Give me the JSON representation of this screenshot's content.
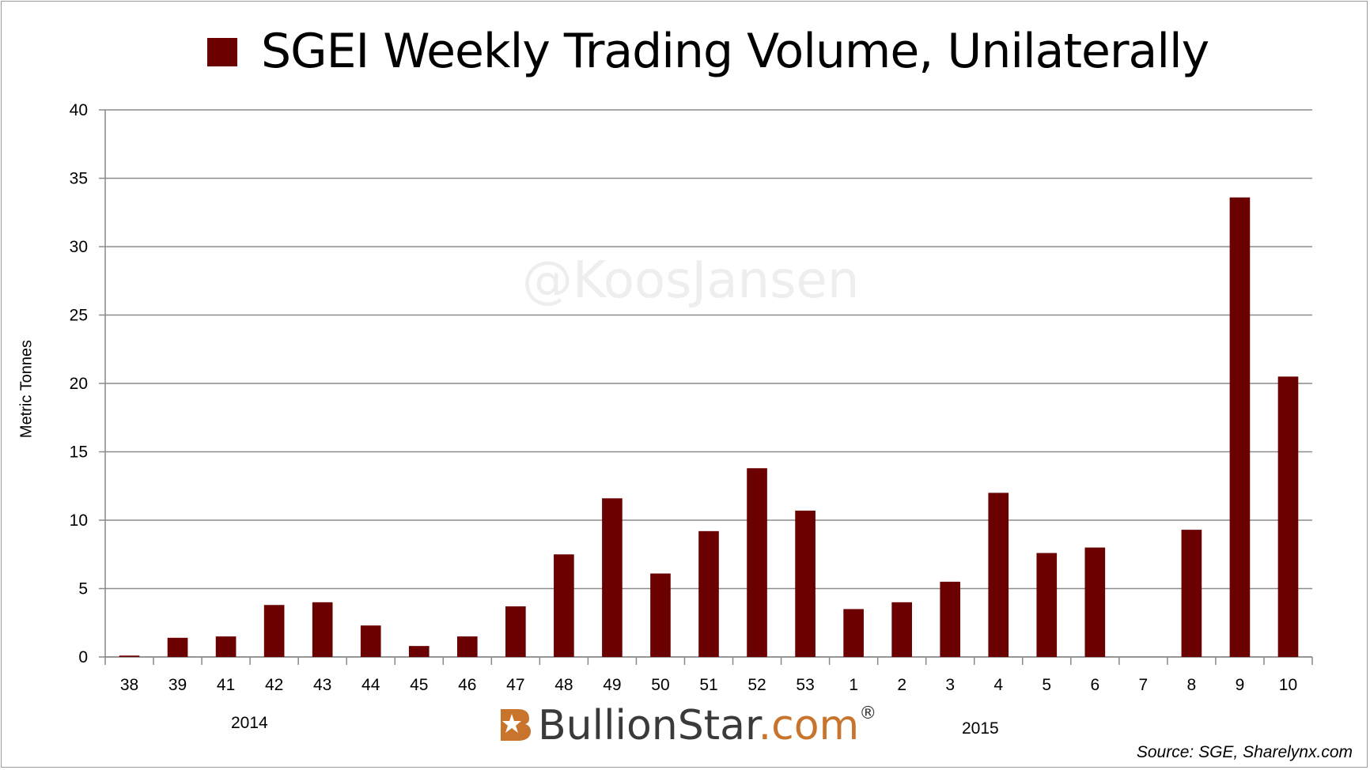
{
  "chart_data": {
    "type": "bar",
    "title": "SGEI Weekly Trading Volume, Unilaterally",
    "legend": "top-left",
    "ylabel": "Metric Tonnes",
    "ylim": [
      0,
      40
    ],
    "yticks": [
      0,
      5,
      10,
      15,
      20,
      25,
      30,
      35,
      40
    ],
    "grid": true,
    "color": "#6b0000",
    "categories": [
      "38",
      "39",
      "41",
      "42",
      "43",
      "44",
      "45",
      "46",
      "47",
      "48",
      "49",
      "50",
      "51",
      "52",
      "53",
      "1",
      "2",
      "3",
      "4",
      "5",
      "6",
      "7",
      "8",
      "9",
      "10"
    ],
    "values": [
      0.1,
      1.4,
      1.5,
      3.8,
      4.0,
      2.3,
      0.8,
      1.5,
      3.7,
      7.5,
      11.6,
      6.1,
      9.2,
      13.8,
      10.7,
      3.5,
      4.0,
      5.5,
      12.0,
      7.6,
      8.0,
      0,
      9.3,
      33.6,
      20.5
    ],
    "year_labels": [
      "2014",
      "2015"
    ]
  },
  "watermark": "@KoosJansen",
  "brand": {
    "part1": "BullionStar",
    "part2": ".com",
    "mark": "®"
  },
  "source": "Source: SGE, Sharelynx.com",
  "colors": {
    "bar": "#6b0000",
    "brand_orange": "#c8742c",
    "brand_grey": "#3a3a3a"
  }
}
